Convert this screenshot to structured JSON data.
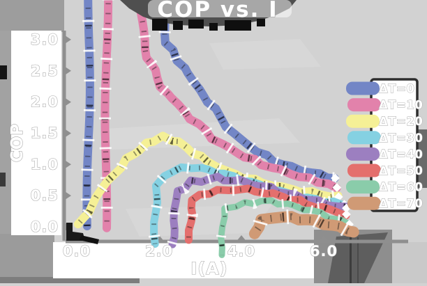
{
  "title": "COP vs. I",
  "colors": {
    "background": "#d2d2d2",
    "side_gray": "#9d9d9d",
    "label_panel": "#ffffff",
    "top_shadow_band": "#4f4f4f",
    "axis_spine": "#8f8f8f",
    "text": "#ffffff",
    "legend_box_fill": "#ffffff",
    "legend_box_border": "#2e2e2e"
  },
  "chart_data": {
    "type": "line",
    "style": "xkcd-sketch thick wobbly strokes, white diamond end markers, dark hatch ticks along lines",
    "title": "COP vs. I",
    "xlabel": "I(A)",
    "ylabel": "COP",
    "xlim": [
      0,
      6.55
    ],
    "ylim": [
      0,
      3.3
    ],
    "grid": false,
    "legend_position": "right",
    "xticks": {
      "values": [
        0,
        2,
        4,
        6
      ],
      "labels": [
        "0.0",
        "2.0",
        "4.0",
        "6.0"
      ]
    },
    "yticks": {
      "values": [
        0,
        0.5,
        1.0,
        1.5,
        2.0,
        2.5,
        3.0
      ],
      "labels": [
        "0.0",
        "0.5",
        "1.0",
        "1.5",
        "2.0",
        "2.5",
        "3.0"
      ]
    },
    "series": [
      {
        "name": "ΔT=0",
        "color": "#7386c6",
        "width": 12,
        "end_marker": true,
        "points": [
          [
            0.27,
            0
          ],
          [
            0.31,
            4.3
          ],
          [
            2.02,
            4.3
          ],
          [
            2.18,
            2.95
          ],
          [
            2.6,
            2.55
          ],
          [
            3.2,
            2.0
          ],
          [
            3.8,
            1.5
          ],
          [
            4.4,
            1.2
          ],
          [
            5.0,
            1.0
          ],
          [
            5.7,
            0.87
          ],
          [
            6.28,
            0.78
          ]
        ]
      },
      {
        "name": "ΔT=10",
        "color": "#e282ab",
        "width": 12,
        "end_marker": true,
        "points": [
          [
            0.7,
            0
          ],
          [
            0.74,
            4.3
          ],
          [
            1.48,
            4.3
          ],
          [
            1.64,
            2.85
          ],
          [
            2.05,
            2.25
          ],
          [
            2.6,
            1.85
          ],
          [
            3.3,
            1.42
          ],
          [
            3.9,
            1.18
          ],
          [
            4.5,
            1.0
          ],
          [
            5.2,
            0.85
          ],
          [
            5.85,
            0.72
          ],
          [
            6.32,
            0.63
          ]
        ]
      },
      {
        "name": "ΔT=20",
        "color": "#f5f096",
        "width": 12,
        "end_marker": true,
        "points": [
          [
            0.06,
            0.02
          ],
          [
            0.6,
            0.6
          ],
          [
            1.2,
            1.08
          ],
          [
            1.7,
            1.33
          ],
          [
            2.08,
            1.44
          ],
          [
            2.5,
            1.35
          ],
          [
            3.0,
            1.12
          ],
          [
            3.6,
            0.9
          ],
          [
            4.3,
            0.75
          ],
          [
            5.0,
            0.63
          ],
          [
            5.7,
            0.55
          ],
          [
            6.36,
            0.48
          ]
        ]
      },
      {
        "name": "ΔT=30",
        "color": "#85d1e2",
        "width": 11,
        "end_marker": true,
        "points": [
          [
            1.88,
            -0.25
          ],
          [
            1.95,
            0.68
          ],
          [
            2.3,
            0.9
          ],
          [
            2.8,
            0.96
          ],
          [
            3.4,
            0.88
          ],
          [
            4.0,
            0.76
          ],
          [
            4.7,
            0.61
          ],
          [
            5.4,
            0.48
          ],
          [
            6.0,
            0.41
          ],
          [
            6.5,
            0.36
          ]
        ]
      },
      {
        "name": "ΔT=40",
        "color": "#9c7fc0",
        "width": 11,
        "end_marker": true,
        "points": [
          [
            2.33,
            -0.3
          ],
          [
            2.42,
            0.55
          ],
          [
            2.8,
            0.72
          ],
          [
            3.4,
            0.78
          ],
          [
            4.0,
            0.73
          ],
          [
            4.7,
            0.62
          ],
          [
            5.3,
            0.5
          ],
          [
            5.9,
            0.4
          ],
          [
            6.55,
            0.3
          ]
        ]
      },
      {
        "name": "ΔT=50",
        "color": "#e46f6d",
        "width": 11,
        "end_marker": true,
        "points": [
          [
            2.73,
            -0.2
          ],
          [
            2.82,
            0.45
          ],
          [
            3.2,
            0.55
          ],
          [
            3.9,
            0.61
          ],
          [
            4.6,
            0.55
          ],
          [
            5.2,
            0.45
          ],
          [
            5.8,
            0.33
          ],
          [
            6.55,
            0.2
          ]
        ]
      },
      {
        "name": "ΔT=60",
        "color": "#8accaa",
        "width": 9,
        "end_marker": true,
        "points": [
          [
            3.5,
            -0.45
          ],
          [
            3.58,
            0.28
          ],
          [
            4.1,
            0.38
          ],
          [
            4.7,
            0.41
          ],
          [
            5.3,
            0.33
          ],
          [
            5.9,
            0.22
          ],
          [
            6.62,
            0.04
          ]
        ]
      },
      {
        "name": "ΔT=70",
        "color": "#d09a75",
        "width": 16,
        "end_marker": false,
        "points": [
          [
            4.35,
            -0.12
          ],
          [
            4.47,
            0.12
          ],
          [
            5.0,
            0.16
          ],
          [
            5.6,
            0.12
          ],
          [
            6.2,
            0.03
          ],
          [
            6.75,
            -0.08
          ]
        ]
      }
    ],
    "legend": {
      "labels": [
        "ΔT=0",
        "ΔT=10",
        "ΔT=20",
        "ΔT=30",
        "ΔT=40",
        "ΔT=50",
        "ΔT=60",
        "ΔT=70"
      ]
    }
  }
}
